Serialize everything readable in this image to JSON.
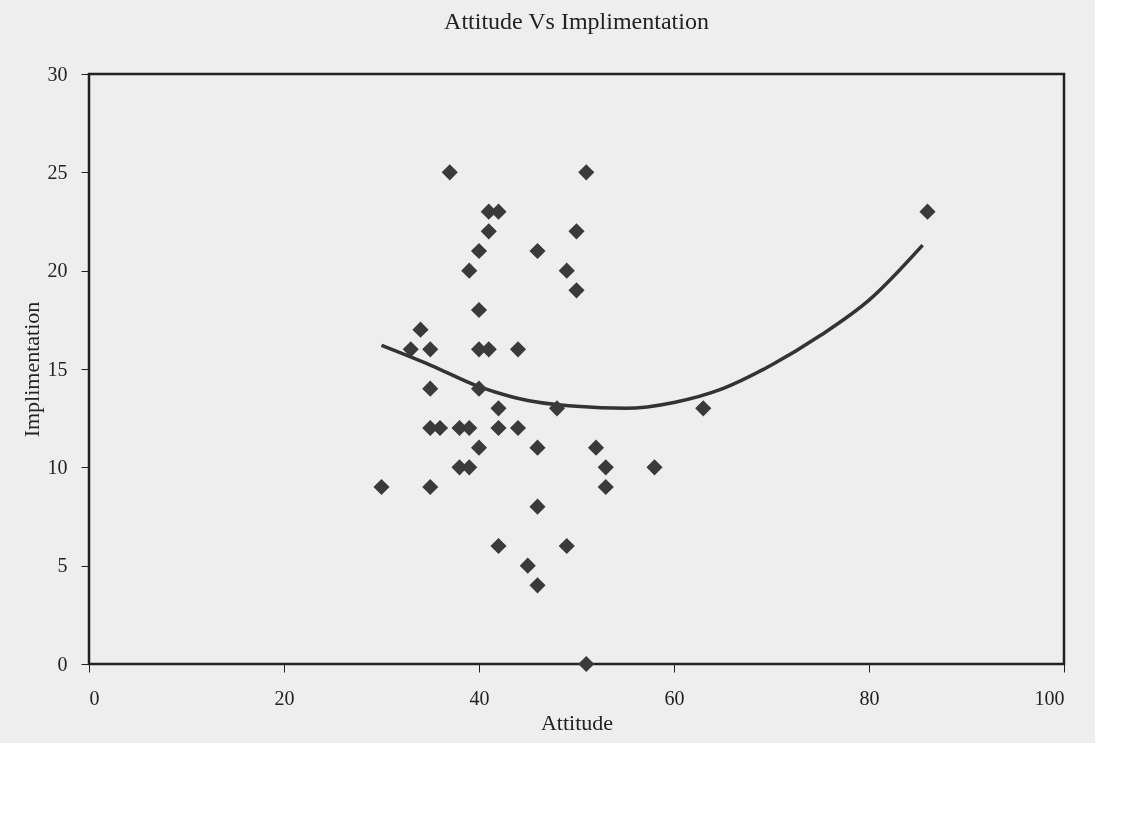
{
  "chart_data": {
    "type": "scatter",
    "title": "Attitude Vs Implimentation",
    "xlabel": "Attitude",
    "ylabel": "Implimentation",
    "xlim": [
      0,
      100
    ],
    "xticks": [
      0,
      20,
      40,
      60,
      80,
      100
    ],
    "ylim": [
      0,
      30
    ],
    "yticks": [
      0,
      5,
      10,
      15,
      20,
      25,
      30
    ],
    "grid": false,
    "marker": "diamond",
    "series": [
      {
        "type": "scatter",
        "color": "#3a3a3a",
        "x": [
          37,
          51,
          41,
          42,
          41,
          50,
          40,
          46,
          39,
          49,
          50,
          40,
          34,
          33,
          35,
          40,
          41,
          44,
          35,
          40,
          42,
          48,
          35,
          36,
          38,
          39,
          42,
          44,
          40,
          46,
          52,
          38,
          39,
          53,
          58,
          30,
          35,
          53,
          46,
          42,
          49,
          45,
          46,
          51,
          63,
          86
        ],
        "values": [
          25,
          25,
          23,
          23,
          22,
          22,
          21,
          21,
          20,
          20,
          19,
          18,
          17,
          16,
          16,
          16,
          16,
          16,
          14,
          14,
          13,
          13,
          12,
          12,
          12,
          12,
          12,
          12,
          11,
          11,
          11,
          10,
          10,
          10,
          10,
          9,
          9,
          9,
          8,
          6,
          6,
          5,
          4,
          0,
          13,
          23
        ]
      },
      {
        "type": "line",
        "color": "#333333",
        "marker": "none",
        "line_style": "solid",
        "x": [
          30,
          35,
          40,
          45,
          50,
          55,
          60,
          65,
          70,
          75,
          80,
          85.5
        ],
        "values": [
          16.2,
          15.2,
          14.1,
          13.4,
          13.1,
          13.0,
          13.3,
          14.0,
          15.2,
          16.7,
          18.5,
          21.3
        ]
      }
    ]
  }
}
